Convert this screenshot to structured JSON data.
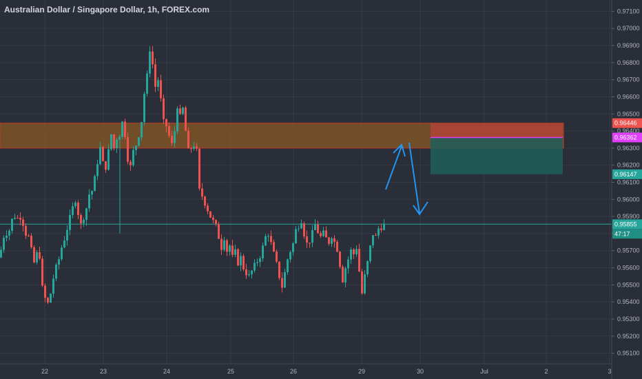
{
  "title": "Australian Dollar / Singapore Dollar, 1h, FOREX.com",
  "colors": {
    "background": "#2a2e39",
    "up": "#26a69a",
    "down": "#ef5350",
    "grid": "#363a45",
    "axis_text": "#b2b5be",
    "zone": "#8a5a22",
    "zone_border": "#c0392b",
    "stop": "#b8433a",
    "target": "#1f5f5a",
    "entry_line": "#e040fb",
    "current_line": "#26a69a",
    "arrow": "#2196f3"
  },
  "price_axis": {
    "labels": [
      "0.97100",
      "0.97000",
      "0.96900",
      "0.96800",
      "0.96700",
      "0.96600",
      "0.96500",
      "0.96400",
      "0.96300",
      "0.96200",
      "0.96100",
      "0.96000",
      "0.95900",
      "0.95800",
      "0.95700",
      "0.95600",
      "0.95500",
      "0.95400",
      "0.95300",
      "0.95200",
      "0.95100"
    ]
  },
  "time_axis": {
    "labels": [
      "22",
      "23",
      "24",
      "25",
      "26",
      "29",
      "30",
      "Jul",
      "2",
      "3"
    ]
  },
  "price_tags": {
    "stop": "0.96446",
    "entry": "0.96362",
    "target": "0.96147",
    "current": "0.95855",
    "countdown": "47:17"
  },
  "chart_data": {
    "type": "candlestick",
    "title": "Australian Dollar / Singapore Dollar, 1h, FOREX.com",
    "timeframe": "1h",
    "ylim": [
      0.9505,
      0.9715
    ],
    "x_ticks": [
      "22",
      "23",
      "24",
      "25",
      "26",
      "29",
      "30",
      "Jul",
      "2",
      "3"
    ],
    "path_points": [
      [
        0,
        0.9566
      ],
      [
        4,
        0.9575
      ],
      [
        8,
        0.9582
      ],
      [
        12,
        0.9579
      ],
      [
        16,
        0.9585
      ],
      [
        20,
        0.9591
      ],
      [
        26,
        0.9589
      ],
      [
        30,
        0.959
      ],
      [
        34,
        0.9586
      ],
      [
        38,
        0.958
      ],
      [
        42,
        0.9578
      ],
      [
        46,
        0.957
      ],
      [
        50,
        0.9563
      ],
      [
        54,
        0.9568
      ],
      [
        58,
        0.9567
      ],
      [
        62,
        0.9548
      ],
      [
        66,
        0.9542
      ],
      [
        70,
        0.9539
      ],
      [
        74,
        0.9545
      ],
      [
        78,
        0.9554
      ],
      [
        82,
        0.956
      ],
      [
        86,
        0.9565
      ],
      [
        90,
        0.9572
      ],
      [
        94,
        0.9577
      ],
      [
        98,
        0.9583
      ],
      [
        102,
        0.9589
      ],
      [
        106,
        0.9595
      ],
      [
        110,
        0.96
      ],
      [
        114,
        0.9592
      ],
      [
        118,
        0.9585
      ],
      [
        122,
        0.959
      ],
      [
        126,
        0.9595
      ],
      [
        130,
        0.9603
      ],
      [
        134,
        0.9605
      ],
      [
        138,
        0.9612
      ],
      [
        142,
        0.9622
      ],
      [
        146,
        0.963
      ],
      [
        150,
        0.9621
      ],
      [
        154,
        0.9619
      ],
      [
        158,
        0.9628
      ],
      [
        162,
        0.9638
      ],
      [
        166,
        0.963
      ],
      [
        170,
        0.9636
      ],
      [
        174,
        0.9638
      ],
      [
        178,
        0.9645
      ],
      [
        182,
        0.9638
      ],
      [
        186,
        0.9624
      ],
      [
        190,
        0.9619
      ],
      [
        194,
        0.9628
      ],
      [
        198,
        0.9632
      ],
      [
        202,
        0.9638
      ],
      [
        206,
        0.9646
      ],
      [
        210,
        0.9662
      ],
      [
        214,
        0.9672
      ],
      [
        218,
        0.9688
      ],
      [
        222,
        0.9679
      ],
      [
        226,
        0.9666
      ],
      [
        230,
        0.967
      ],
      [
        234,
        0.9658
      ],
      [
        238,
        0.9645
      ],
      [
        242,
        0.9643
      ],
      [
        246,
        0.9637
      ],
      [
        250,
        0.9632
      ],
      [
        254,
        0.964
      ],
      [
        258,
        0.9655
      ],
      [
        262,
        0.9648
      ],
      [
        266,
        0.9653
      ],
      [
        270,
        0.964
      ],
      [
        274,
        0.9628
      ],
      [
        278,
        0.963
      ],
      [
        282,
        0.9632
      ],
      [
        286,
        0.9628
      ],
      [
        290,
        0.9605
      ],
      [
        294,
        0.9602
      ],
      [
        298,
        0.9598
      ],
      [
        302,
        0.9594
      ],
      [
        306,
        0.959
      ],
      [
        310,
        0.9587
      ],
      [
        314,
        0.9584
      ],
      [
        318,
        0.9578
      ],
      [
        322,
        0.9572
      ],
      [
        326,
        0.9578
      ],
      [
        330,
        0.957
      ],
      [
        334,
        0.9573
      ],
      [
        338,
        0.9566
      ],
      [
        342,
        0.9569
      ],
      [
        346,
        0.9563
      ],
      [
        350,
        0.9566
      ],
      [
        354,
        0.956
      ],
      [
        358,
        0.9557
      ],
      [
        362,
        0.9555
      ],
      [
        366,
        0.9558
      ],
      [
        370,
        0.9561
      ],
      [
        374,
        0.9564
      ],
      [
        378,
        0.9567
      ],
      [
        382,
        0.9572
      ],
      [
        386,
        0.9578
      ],
      [
        390,
        0.958
      ],
      [
        394,
        0.9574
      ],
      [
        398,
        0.9568
      ],
      [
        402,
        0.9562
      ],
      [
        406,
        0.9555
      ],
      [
        410,
        0.9549
      ],
      [
        414,
        0.9557
      ],
      [
        418,
        0.9565
      ],
      [
        422,
        0.957
      ],
      [
        426,
        0.9574
      ],
      [
        430,
        0.9582
      ],
      [
        434,
        0.9585
      ],
      [
        438,
        0.9588
      ],
      [
        442,
        0.958
      ],
      [
        446,
        0.9574
      ],
      [
        450,
        0.9576
      ],
      [
        454,
        0.958
      ],
      [
        458,
        0.9585
      ],
      [
        462,
        0.9581
      ],
      [
        466,
        0.9578
      ],
      [
        470,
        0.958
      ],
      [
        474,
        0.9577
      ],
      [
        478,
        0.9575
      ],
      [
        482,
        0.9579
      ],
      [
        486,
        0.9575
      ],
      [
        490,
        0.9571
      ],
      [
        494,
        0.9562
      ],
      [
        498,
        0.9553
      ],
      [
        502,
        0.956
      ],
      [
        506,
        0.9565
      ],
      [
        510,
        0.957
      ],
      [
        514,
        0.9568
      ],
      [
        518,
        0.9572
      ],
      [
        522,
        0.9558
      ],
      [
        526,
        0.9545
      ],
      [
        530,
        0.9555
      ],
      [
        534,
        0.9563
      ],
      [
        538,
        0.9572
      ],
      [
        542,
        0.958
      ],
      [
        546,
        0.9578
      ],
      [
        550,
        0.9583
      ],
      [
        554,
        0.9584
      ],
      [
        556,
        0.9585
      ]
    ],
    "candle_step_px": 4,
    "resistance_zone": [
      0.963,
      0.96446
    ],
    "position": {
      "side": "short",
      "stop": 0.96446,
      "entry": 0.96362,
      "target": 0.96147
    },
    "current_price": 0.95855,
    "annotations": "up-arrow then down-arrow projection"
  }
}
